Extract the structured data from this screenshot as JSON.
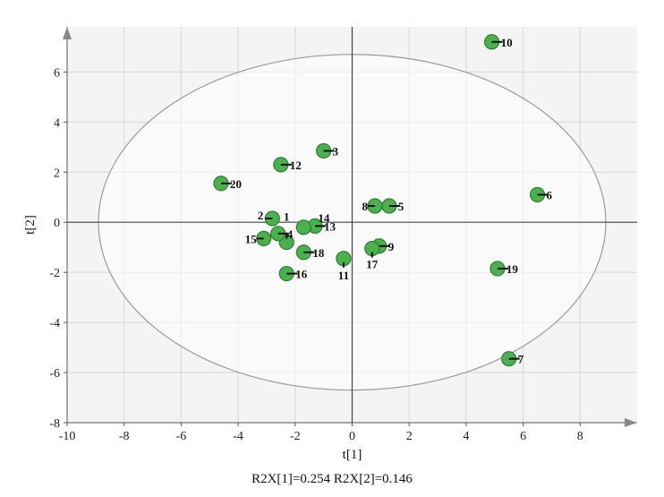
{
  "chart_data": {
    "type": "scatter",
    "title": "",
    "xlabel": "t[1]",
    "ylabel": "t[2]",
    "xlim": [
      -10,
      10
    ],
    "ylim": [
      -8,
      7.8
    ],
    "x_ticks": [
      "-10",
      "-8",
      "-6",
      "-4",
      "-2",
      "0",
      "2",
      "4",
      "6",
      "8"
    ],
    "y_ticks": [
      "-8",
      "-6",
      "-4",
      "-2",
      "0",
      "2",
      "4",
      "6"
    ],
    "grid": true,
    "ellipse": {
      "semi_axis_x": 8.9,
      "semi_axis_y": 6.7
    },
    "footer": "R2X[1]=0.254  R2X[2]=0.146",
    "colors": {
      "point_fill": "#4caf50",
      "point_stroke": "#2e7d32",
      "background": "#f4f4f4",
      "grid": "#d6d6d6"
    },
    "points": [
      {
        "label": "1",
        "x": -2.3,
        "y": -0.8
      },
      {
        "label": "2",
        "x": -2.8,
        "y": 0.15
      },
      {
        "label": "3",
        "x": -1.0,
        "y": 2.85
      },
      {
        "label": "4",
        "x": -2.6,
        "y": -0.45
      },
      {
        "label": "5",
        "x": 1.3,
        "y": 0.65
      },
      {
        "label": "6",
        "x": 6.5,
        "y": 1.1
      },
      {
        "label": "7",
        "x": 5.5,
        "y": -5.45
      },
      {
        "label": "8",
        "x": 0.8,
        "y": 0.65
      },
      {
        "label": "9",
        "x": 0.95,
        "y": -0.95
      },
      {
        "label": "10",
        "x": 4.9,
        "y": 7.2
      },
      {
        "label": "11",
        "x": -0.3,
        "y": -1.45
      },
      {
        "label": "12",
        "x": -2.5,
        "y": 2.3
      },
      {
        "label": "13",
        "x": -1.3,
        "y": -0.15
      },
      {
        "label": "14",
        "x": -1.7,
        "y": -0.2
      },
      {
        "label": "15",
        "x": -3.1,
        "y": -0.65
      },
      {
        "label": "16",
        "x": -2.3,
        "y": -2.05
      },
      {
        "label": "17",
        "x": 0.7,
        "y": -1.05
      },
      {
        "label": "18",
        "x": -1.7,
        "y": -1.2
      },
      {
        "label": "19",
        "x": 5.1,
        "y": -1.85
      },
      {
        "label": "20",
        "x": -4.6,
        "y": 1.55
      }
    ]
  }
}
